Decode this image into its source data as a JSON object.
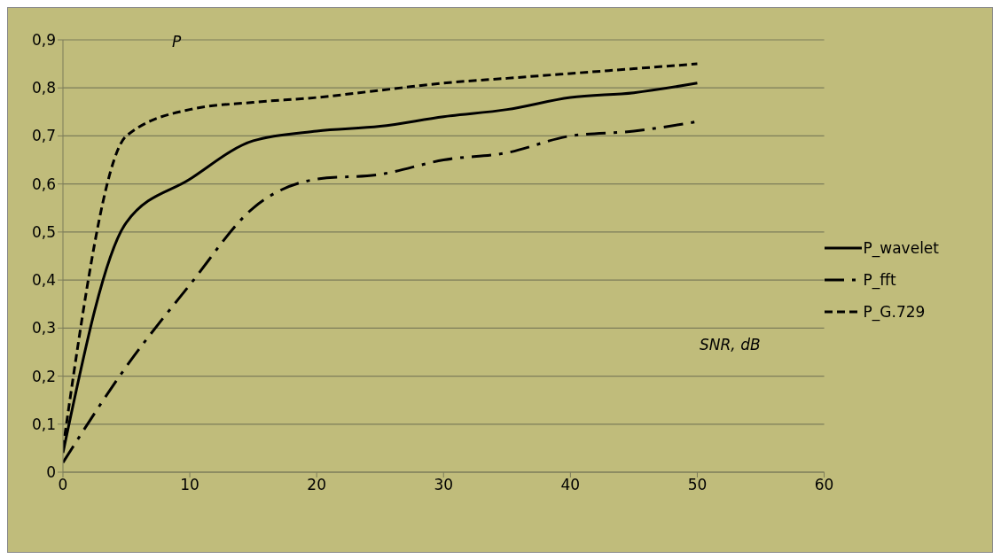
{
  "chart_data": {
    "type": "line",
    "xlabel": "SNR, dB",
    "ylabel": "P",
    "x": [
      0,
      5,
      10,
      15,
      20,
      25,
      30,
      35,
      40,
      45,
      50
    ],
    "series": [
      {
        "name": "P_wavelet",
        "color": "#000000",
        "line_style": "solid",
        "values": [
          0.04,
          0.52,
          0.61,
          0.69,
          0.71,
          0.72,
          0.74,
          0.755,
          0.78,
          0.79,
          0.81
        ]
      },
      {
        "name": "P_fft",
        "color": "#000000",
        "line_style": "dashdot",
        "values": [
          0.02,
          0.22,
          0.39,
          0.55,
          0.61,
          0.62,
          0.65,
          0.665,
          0.7,
          0.71,
          0.73
        ]
      },
      {
        "name": "P_G.729",
        "color": "#000000",
        "line_style": "dashed",
        "values": [
          0.05,
          0.7,
          0.755,
          0.77,
          0.78,
          0.795,
          0.81,
          0.82,
          0.83,
          0.84,
          0.85
        ]
      }
    ],
    "xlim": [
      0,
      60
    ],
    "xticks": [
      0,
      10,
      20,
      30,
      40,
      50,
      60
    ],
    "ylim": [
      0,
      0.9
    ],
    "yticks": [
      {
        "value": 0,
        "label": "0"
      },
      {
        "value": 0.1,
        "label": "0,1"
      },
      {
        "value": 0.2,
        "label": "0,2"
      },
      {
        "value": 0.3,
        "label": "0,3"
      },
      {
        "value": 0.4,
        "label": "0,4"
      },
      {
        "value": 0.5,
        "label": "0,5"
      },
      {
        "value": 0.6,
        "label": "0,6"
      },
      {
        "value": 0.7,
        "label": "0,7"
      },
      {
        "value": 0.8,
        "label": "0,8"
      },
      {
        "value": 0.9,
        "label": "0,9"
      }
    ],
    "grid": "y",
    "legend": "right",
    "marker": "none"
  }
}
